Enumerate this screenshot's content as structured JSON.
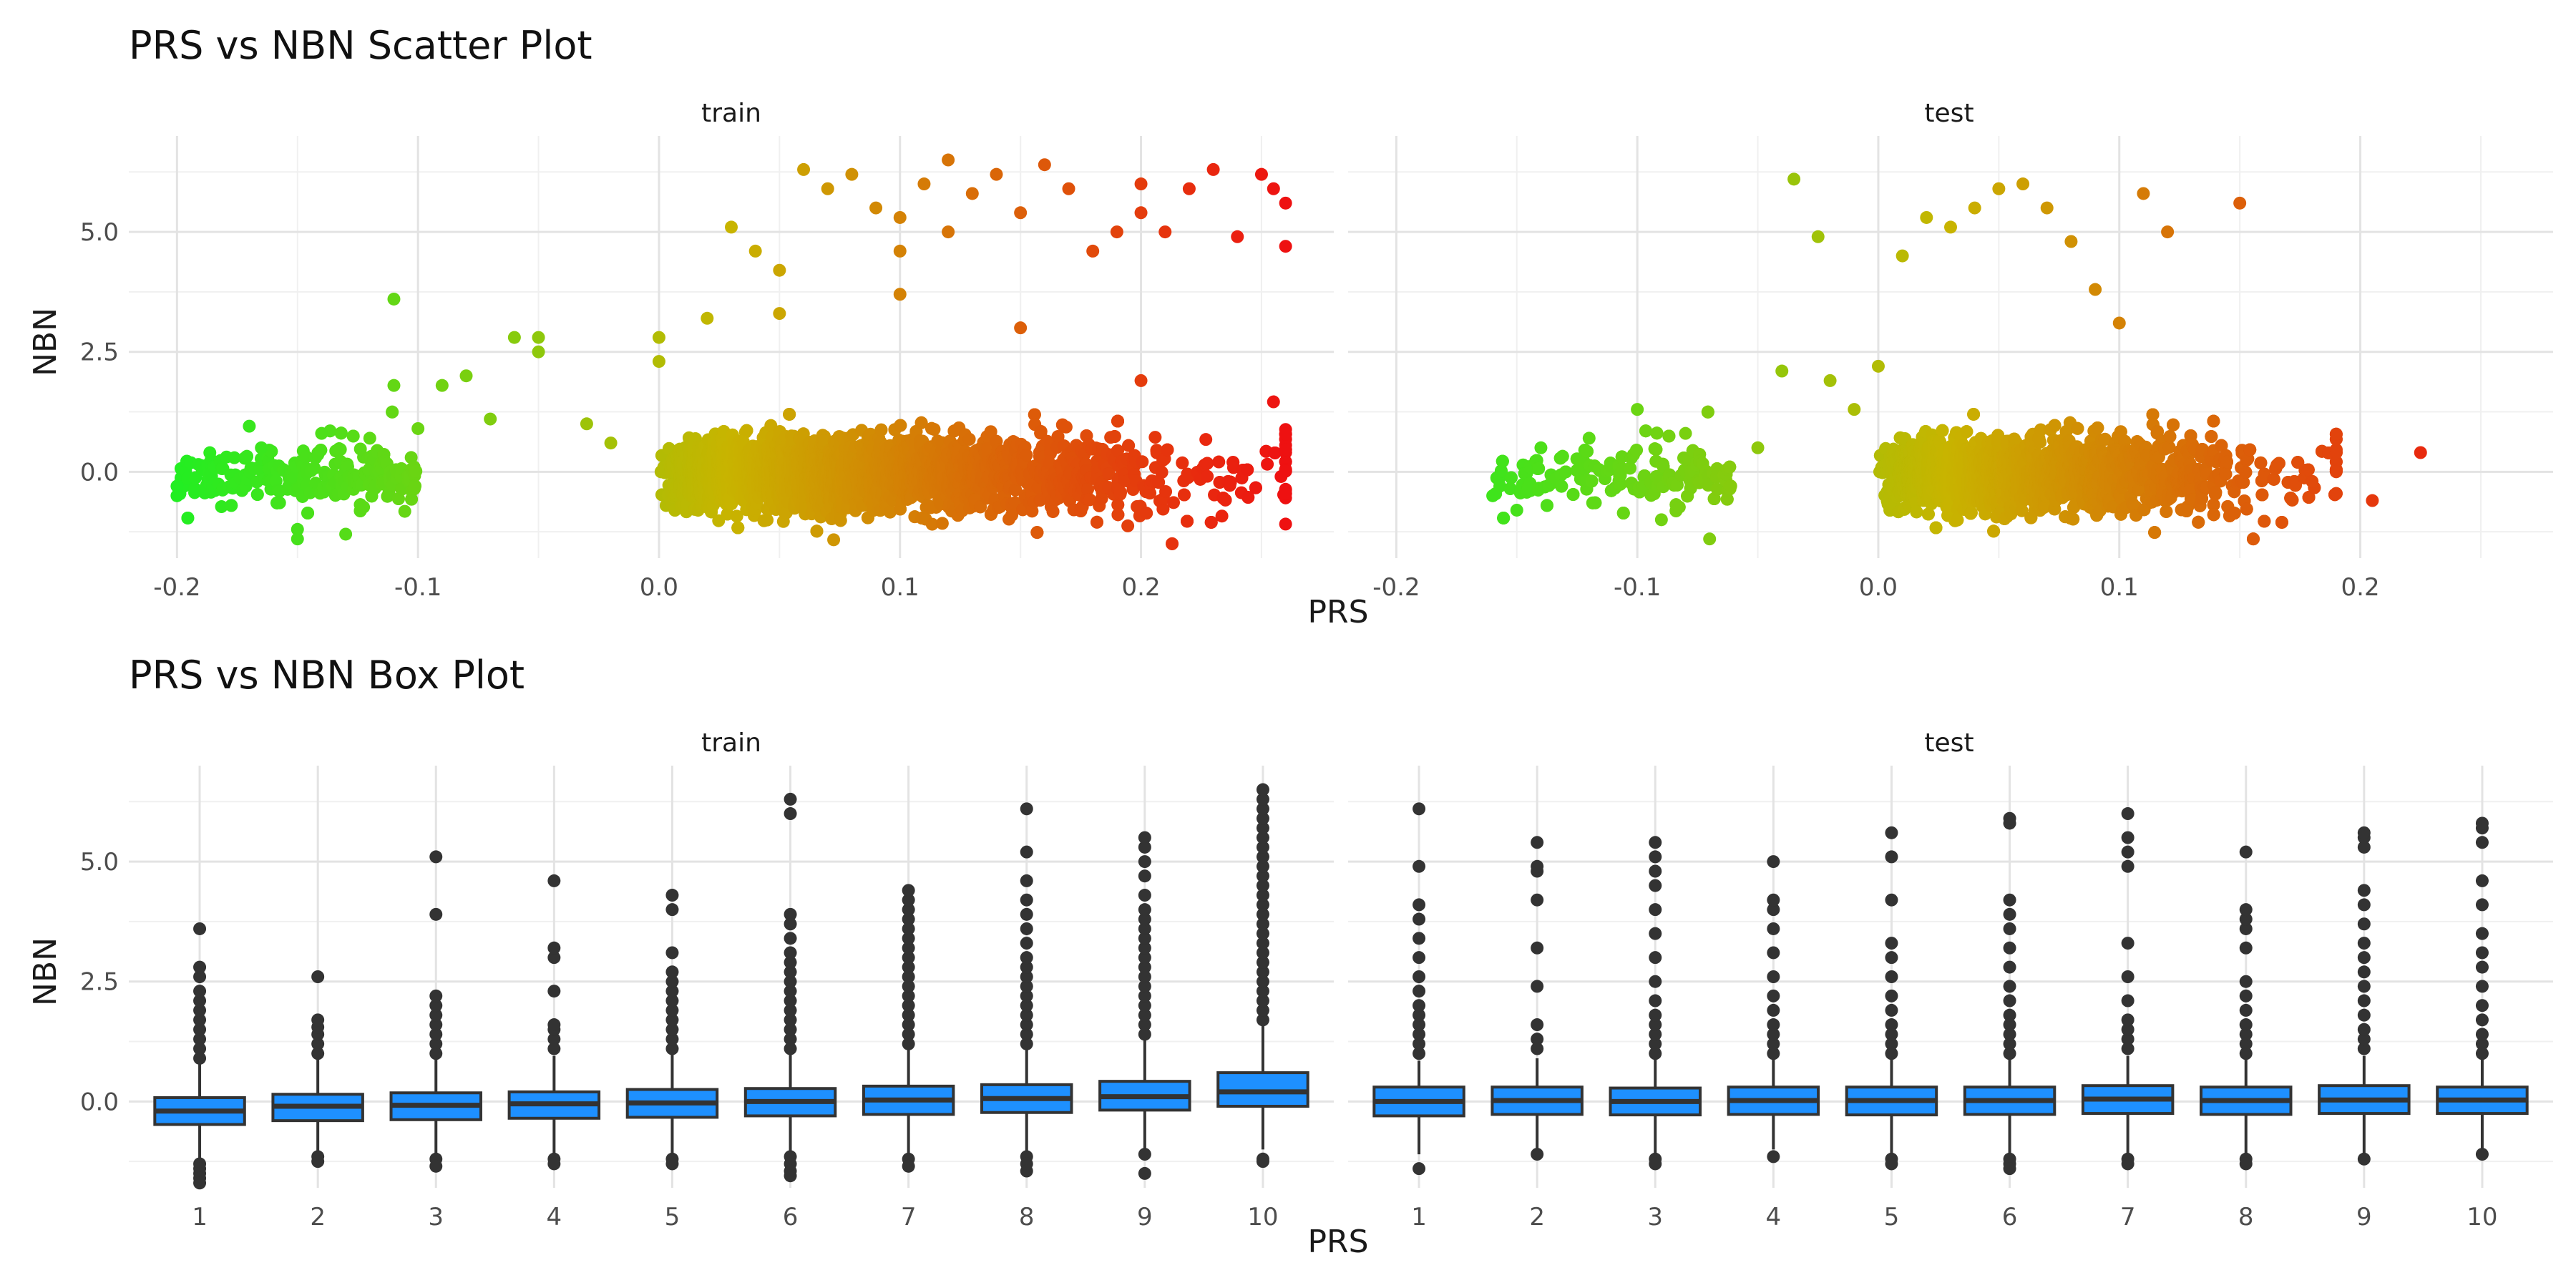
{
  "chart_data": [
    {
      "type": "scatter",
      "title": "PRS vs NBN Scatter Plot",
      "xlabel": "PRS",
      "ylabel": "NBN",
      "facets": [
        "train",
        "test"
      ],
      "xlim": [
        -0.22,
        0.28
      ],
      "ylim": [
        -1.8,
        7.0
      ],
      "x_ticks": [
        -0.2,
        -0.1,
        0.0,
        0.1,
        0.2
      ],
      "x_tick_labels": [
        "-0.2",
        "-0.1",
        "0.0",
        "0.1",
        "0.2"
      ],
      "y_ticks": [
        0.0,
        2.5,
        5.0
      ],
      "y_tick_labels": [
        "0.0",
        "2.5",
        "5.0"
      ],
      "grid": true,
      "color_scale": {
        "low": "#22ee22",
        "mid": "#c8b400",
        "high": "#ee1111",
        "mapped_to": "PRS"
      },
      "series": [
        {
          "facet": "train",
          "core_cloud": {
            "x_range": [
              -0.2,
              0.26
            ],
            "y_range": [
              -1.5,
              2.0
            ]
          },
          "x": [
            -0.2,
            -0.2,
            -0.17,
            -0.165,
            -0.15,
            -0.15,
            -0.14,
            -0.13,
            -0.12,
            -0.11,
            -0.11,
            -0.1,
            -0.09,
            -0.08,
            -0.07,
            -0.06,
            -0.05,
            -0.05,
            -0.03,
            -0.02,
            0.0,
            0.0,
            0.02,
            0.03,
            0.04,
            0.05,
            0.06,
            0.07,
            0.08,
            0.09,
            0.1,
            0.1,
            0.11,
            0.12,
            0.12,
            0.13,
            0.14,
            0.15,
            0.16,
            0.17,
            0.18,
            0.19,
            0.2,
            0.2,
            0.21,
            0.22,
            0.23,
            0.24,
            0.25,
            0.255,
            0.26,
            0.26,
            0.2,
            0.15,
            0.1,
            0.05
          ],
          "y": [
            -0.3,
            -0.5,
            0.95,
            0.5,
            -1.2,
            -1.4,
            0.8,
            -1.3,
            0.7,
            3.6,
            1.8,
            0.9,
            1.8,
            2.0,
            1.1,
            2.8,
            2.8,
            2.5,
            1.0,
            0.6,
            2.8,
            2.3,
            3.2,
            5.1,
            4.6,
            4.2,
            6.3,
            5.9,
            6.2,
            5.5,
            5.3,
            4.6,
            6.0,
            6.5,
            5.0,
            5.8,
            6.2,
            5.4,
            6.4,
            5.9,
            4.6,
            5.0,
            6.0,
            5.4,
            5.0,
            5.9,
            6.3,
            4.9,
            6.2,
            5.9,
            5.6,
            4.7,
            1.9,
            3.0,
            3.7,
            3.3
          ]
        },
        {
          "facet": "test",
          "core_cloud": {
            "x_range": [
              -0.16,
              0.19
            ],
            "y_range": [
              -1.4,
              1.5
            ]
          },
          "x": [
            -0.16,
            -0.15,
            -0.14,
            -0.12,
            -0.1,
            -0.09,
            -0.08,
            -0.07,
            -0.05,
            -0.04,
            -0.035,
            -0.025,
            -0.02,
            -0.01,
            0.0,
            0.01,
            0.02,
            0.03,
            0.04,
            0.05,
            0.06,
            0.07,
            0.08,
            0.09,
            0.1,
            0.11,
            0.12,
            0.15,
            0.18,
            0.19,
            0.205,
            0.225
          ],
          "y": [
            -0.5,
            -0.8,
            0.5,
            0.7,
            1.3,
            -1.0,
            0.8,
            -1.4,
            0.5,
            2.1,
            6.1,
            4.9,
            1.9,
            1.3,
            2.2,
            4.5,
            5.3,
            5.1,
            5.5,
            5.9,
            6.0,
            5.5,
            4.8,
            3.8,
            3.1,
            5.8,
            5.0,
            5.6,
            -0.2,
            0.0,
            -0.6,
            0.4
          ]
        }
      ]
    },
    {
      "type": "box",
      "title": "PRS vs NBN Box Plot",
      "xlabel": "PRS",
      "ylabel": "NBN",
      "facets": [
        "train",
        "test"
      ],
      "categories": [
        "1",
        "2",
        "3",
        "4",
        "5",
        "6",
        "7",
        "8",
        "9",
        "10"
      ],
      "ylim": [
        -1.8,
        7.0
      ],
      "y_ticks": [
        0.0,
        2.5,
        5.0
      ],
      "y_tick_labels": [
        "0.0",
        "2.5",
        "5.0"
      ],
      "fill": "#1e90ff",
      "grid": true,
      "series": [
        {
          "facet": "train",
          "boxes": [
            {
              "q1": -0.48,
              "median": -0.2,
              "q3": 0.08,
              "low": -1.3,
              "high": 0.8,
              "outliers_high": [
                0.9,
                1.1,
                1.3,
                1.5,
                1.7,
                1.9,
                2.1,
                2.3,
                2.6,
                2.8,
                3.6
              ],
              "outliers_low": [
                -1.3,
                -1.4,
                -1.5,
                -1.6,
                -1.7
              ]
            },
            {
              "q1": -0.4,
              "median": -0.1,
              "q3": 0.15,
              "low": -1.1,
              "high": 0.9,
              "outliers_high": [
                1.0,
                1.2,
                1.4,
                1.55,
                1.7,
                2.6
              ],
              "outliers_low": [
                -1.15,
                -1.25
              ]
            },
            {
              "q1": -0.38,
              "median": -0.08,
              "q3": 0.18,
              "low": -1.1,
              "high": 0.9,
              "outliers_high": [
                1.0,
                1.2,
                1.4,
                1.6,
                1.8,
                2.0,
                2.2,
                3.9,
                5.1
              ],
              "outliers_low": [
                -1.2,
                -1.35
              ]
            },
            {
              "q1": -0.35,
              "median": -0.05,
              "q3": 0.2,
              "low": -1.1,
              "high": 0.95,
              "outliers_high": [
                1.1,
                1.3,
                1.5,
                1.6,
                2.3,
                3.0,
                3.2,
                4.6
              ],
              "outliers_low": [
                -1.2,
                -1.3
              ]
            },
            {
              "q1": -0.33,
              "median": -0.03,
              "q3": 0.25,
              "low": -1.1,
              "high": 1.0,
              "outliers_high": [
                1.1,
                1.3,
                1.5,
                1.7,
                1.9,
                2.1,
                2.3,
                2.5,
                2.7,
                3.1,
                4.0,
                4.3
              ],
              "outliers_low": [
                -1.2,
                -1.3
              ]
            },
            {
              "q1": -0.3,
              "median": 0.0,
              "q3": 0.27,
              "low": -1.1,
              "high": 1.05,
              "outliers_high": [
                1.1,
                1.3,
                1.5,
                1.7,
                1.9,
                2.1,
                2.3,
                2.5,
                2.7,
                2.9,
                3.1,
                3.4,
                3.7,
                3.9,
                6.0,
                6.3
              ],
              "outliers_low": [
                -1.15,
                -1.3,
                -1.45,
                -1.55
              ]
            },
            {
              "q1": -0.27,
              "median": 0.03,
              "q3": 0.32,
              "low": -1.1,
              "high": 1.1,
              "outliers_high": [
                1.2,
                1.4,
                1.6,
                1.8,
                2.0,
                2.2,
                2.4,
                2.6,
                2.8,
                3.0,
                3.2,
                3.4,
                3.6,
                3.8,
                4.0,
                4.2,
                4.4
              ],
              "outliers_low": [
                -1.2,
                -1.35
              ]
            },
            {
              "q1": -0.23,
              "median": 0.06,
              "q3": 0.35,
              "low": -1.1,
              "high": 1.15,
              "outliers_high": [
                1.2,
                1.4,
                1.6,
                1.8,
                2.0,
                2.2,
                2.4,
                2.6,
                2.8,
                3.0,
                3.3,
                3.6,
                3.9,
                4.2,
                4.6,
                5.2,
                6.1
              ],
              "outliers_low": [
                -1.15,
                -1.3,
                -1.45
              ]
            },
            {
              "q1": -0.18,
              "median": 0.1,
              "q3": 0.42,
              "low": -1.0,
              "high": 1.3,
              "outliers_high": [
                1.4,
                1.6,
                1.8,
                2.0,
                2.2,
                2.4,
                2.6,
                2.8,
                3.0,
                3.2,
                3.4,
                3.6,
                3.8,
                4.0,
                4.3,
                4.7,
                5.0,
                5.3,
                5.5
              ],
              "outliers_low": [
                -1.1,
                -1.5
              ]
            },
            {
              "q1": -0.1,
              "median": 0.2,
              "q3": 0.6,
              "low": -1.0,
              "high": 1.65,
              "outliers_high": [
                1.7,
                1.9,
                2.1,
                2.3,
                2.5,
                2.7,
                2.9,
                3.1,
                3.3,
                3.5,
                3.7,
                3.9,
                4.1,
                4.3,
                4.5,
                4.7,
                4.9,
                5.1,
                5.3,
                5.5,
                5.7,
                5.9,
                6.1,
                6.3,
                6.5
              ],
              "outliers_low": [
                -1.2,
                -1.25
              ]
            }
          ]
        },
        {
          "facet": "test",
          "boxes": [
            {
              "q1": -0.3,
              "median": 0.0,
              "q3": 0.3,
              "low": -1.1,
              "high": 0.85,
              "outliers_high": [
                1.0,
                1.2,
                1.4,
                1.6,
                1.8,
                2.0,
                2.3,
                2.6,
                3.0,
                3.4,
                3.8,
                4.1,
                4.9,
                6.1
              ],
              "outliers_low": [
                -1.4
              ]
            },
            {
              "q1": -0.27,
              "median": 0.02,
              "q3": 0.3,
              "low": -1.0,
              "high": 0.9,
              "outliers_high": [
                1.1,
                1.3,
                1.6,
                2.4,
                3.2,
                4.2,
                4.8,
                4.9,
                5.4
              ],
              "outliers_low": [
                -1.1
              ]
            },
            {
              "q1": -0.28,
              "median": 0.0,
              "q3": 0.28,
              "low": -1.1,
              "high": 0.9,
              "outliers_high": [
                1.0,
                1.2,
                1.4,
                1.6,
                1.8,
                2.1,
                2.5,
                3.0,
                3.5,
                4.0,
                4.5,
                4.8,
                5.1,
                5.4
              ],
              "outliers_low": [
                -1.2,
                -1.3
              ]
            },
            {
              "q1": -0.27,
              "median": 0.02,
              "q3": 0.3,
              "low": -1.0,
              "high": 0.9,
              "outliers_high": [
                1.0,
                1.2,
                1.4,
                1.6,
                1.9,
                2.2,
                2.6,
                3.1,
                3.6,
                4.0,
                4.2,
                5.0
              ],
              "outliers_low": [
                -1.15
              ]
            },
            {
              "q1": -0.28,
              "median": 0.02,
              "q3": 0.3,
              "low": -1.15,
              "high": 0.9,
              "outliers_high": [
                1.0,
                1.2,
                1.4,
                1.6,
                1.9,
                2.2,
                2.6,
                3.0,
                3.3,
                4.2,
                5.1,
                5.6
              ],
              "outliers_low": [
                -1.2,
                -1.3
              ]
            },
            {
              "q1": -0.27,
              "median": 0.02,
              "q3": 0.3,
              "low": -1.1,
              "high": 0.9,
              "outliers_high": [
                1.0,
                1.2,
                1.4,
                1.6,
                1.8,
                2.1,
                2.4,
                2.8,
                3.2,
                3.6,
                3.9,
                4.2,
                5.8,
                5.9
              ],
              "outliers_low": [
                -1.2,
                -1.3,
                -1.4
              ]
            },
            {
              "q1": -0.25,
              "median": 0.05,
              "q3": 0.33,
              "low": -1.1,
              "high": 0.95,
              "outliers_high": [
                1.1,
                1.3,
                1.5,
                1.7,
                2.1,
                2.6,
                3.3,
                4.9,
                5.2,
                5.5,
                6.0
              ],
              "outliers_low": [
                -1.2,
                -1.3
              ]
            },
            {
              "q1": -0.27,
              "median": 0.02,
              "q3": 0.3,
              "low": -1.1,
              "high": 0.9,
              "outliers_high": [
                1.0,
                1.2,
                1.4,
                1.6,
                1.9,
                2.2,
                2.5,
                3.2,
                3.6,
                3.8,
                4.0,
                5.2
              ],
              "outliers_low": [
                -1.2,
                -1.3
              ]
            },
            {
              "q1": -0.25,
              "median": 0.03,
              "q3": 0.33,
              "low": -1.1,
              "high": 0.95,
              "outliers_high": [
                1.1,
                1.3,
                1.5,
                1.8,
                2.1,
                2.4,
                2.7,
                3.0,
                3.3,
                3.7,
                4.1,
                4.4,
                5.3,
                5.5,
                5.6
              ],
              "outliers_low": [
                -1.2
              ]
            },
            {
              "q1": -0.25,
              "median": 0.03,
              "q3": 0.3,
              "low": -1.0,
              "high": 0.9,
              "outliers_high": [
                1.0,
                1.2,
                1.4,
                1.7,
                2.0,
                2.4,
                2.8,
                3.1,
                3.5,
                4.1,
                4.6,
                5.4,
                5.7,
                5.8
              ],
              "outliers_low": [
                -1.1
              ]
            }
          ]
        }
      ]
    }
  ]
}
